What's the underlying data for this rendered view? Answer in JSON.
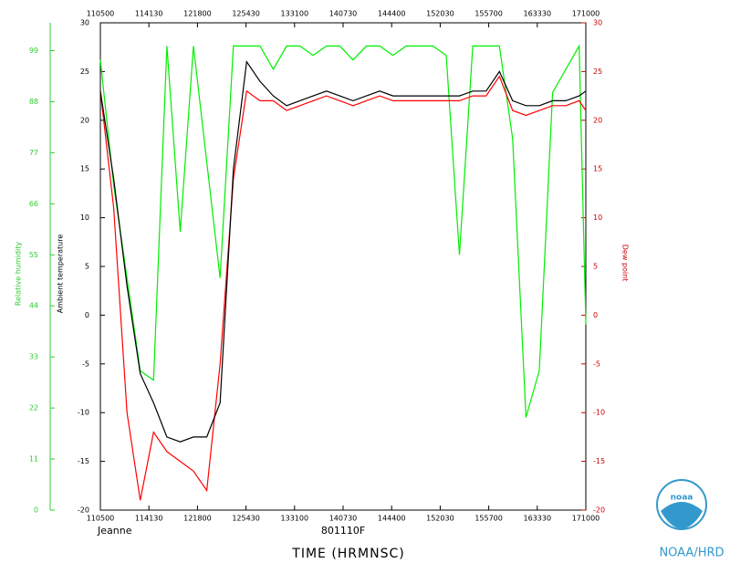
{
  "chart_data": {
    "type": "line",
    "title": "Jeanne",
    "subtitle": "801110F",
    "xlabel": "TIME (HRMNSC)",
    "ylabel": "Ambient temperature",
    "y2label": "Relative humidity",
    "y3label": "Dew point",
    "credit": "NOAA/HRD",
    "logo_text": "noaa",
    "xlim": [
      39900,
      61800
    ],
    "xticks": [
      {
        "value": 39900,
        "label": "110500"
      },
      {
        "value": 42090,
        "label": "114130"
      },
      {
        "value": 44280,
        "label": "121800"
      },
      {
        "value": 46470,
        "label": "125430"
      },
      {
        "value": 48660,
        "label": "133100"
      },
      {
        "value": 50850,
        "label": "140730"
      },
      {
        "value": 53040,
        "label": "144400"
      },
      {
        "value": 55230,
        "label": "152030"
      },
      {
        "value": 57420,
        "label": "155700"
      },
      {
        "value": 59610,
        "label": "163330"
      },
      {
        "value": 61800,
        "label": "171000"
      }
    ],
    "ylim": [
      -20,
      30
    ],
    "yticks": [
      -20,
      -15,
      -10,
      -5,
      0,
      5,
      10,
      15,
      20,
      25,
      30
    ],
    "y2lim": [
      0,
      105
    ],
    "y2ticks": [
      0,
      11,
      22,
      33,
      44,
      55,
      66,
      77,
      88,
      99
    ],
    "y2_color": "#33cc33",
    "y3_color": "#cc0000",
    "x": [
      39900,
      40500,
      41100,
      41700,
      42300,
      42900,
      43500,
      44100,
      44700,
      45300,
      45900,
      46500,
      47100,
      47700,
      48300,
      48900,
      49500,
      50100,
      50700,
      51300,
      51900,
      52500,
      53100,
      53700,
      54300,
      54900,
      55500,
      56100,
      56700,
      57300,
      57900,
      58500,
      59100,
      59700,
      60300,
      60900,
      61500,
      61800
    ],
    "series": [
      {
        "name": "Relative humidity",
        "color": "#00ee00",
        "axis": "y2",
        "values": [
          97,
          70,
          50,
          30,
          28,
          100,
          60,
          100,
          75,
          50,
          100,
          100,
          100,
          95,
          100,
          100,
          98,
          100,
          100,
          97,
          100,
          100,
          98,
          100,
          100,
          100,
          98,
          55,
          100,
          100,
          100,
          80,
          20,
          30,
          90,
          95,
          100,
          40
        ]
      },
      {
        "name": "Dew point",
        "color": "#ff0000",
        "values": [
          23,
          11,
          -10,
          -19,
          -12,
          -14,
          -15,
          -16,
          -18,
          -5,
          14,
          23,
          22,
          22,
          21,
          21.5,
          22,
          22.5,
          22,
          21.5,
          22,
          22.5,
          22,
          22,
          22,
          22,
          22,
          22,
          22.5,
          22.5,
          24.5,
          21,
          20.5,
          21,
          21.5,
          21.5,
          22,
          21
        ]
      },
      {
        "name": "Ambient temperature",
        "color": "#000000",
        "values": [
          23,
          14,
          3,
          -6,
          -9,
          -12.5,
          -13,
          -12.5,
          -12.5,
          -9,
          15,
          26,
          24,
          22.5,
          21.5,
          22,
          22.5,
          23,
          22.5,
          22,
          22.5,
          23,
          22.5,
          22.5,
          22.5,
          22.5,
          22.5,
          22.5,
          23,
          23,
          25,
          22,
          21.5,
          21.5,
          22,
          22,
          22.5,
          23
        ]
      }
    ]
  }
}
